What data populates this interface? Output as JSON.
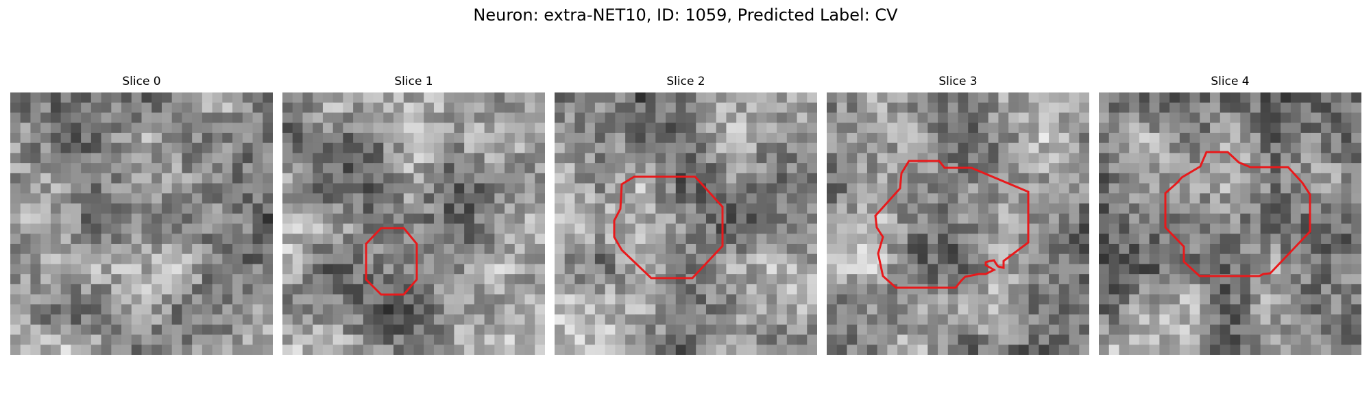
{
  "figure": {
    "title": "Neuron: extra-NET10, ID: 1059, Predicted Label: CV"
  },
  "panels": [
    {
      "title": "Slice 0",
      "has_contour": false,
      "image": "grayscale-em-patch"
    },
    {
      "title": "Slice 1",
      "has_contour": true,
      "image": "grayscale-em-patch"
    },
    {
      "title": "Slice 2",
      "has_contour": true,
      "image": "grayscale-em-patch"
    },
    {
      "title": "Slice 3",
      "has_contour": true,
      "image": "grayscale-em-patch"
    },
    {
      "title": "Slice 4",
      "has_contour": true,
      "image": "grayscale-em-patch"
    }
  ],
  "colors": {
    "contour": "#e8191b"
  }
}
